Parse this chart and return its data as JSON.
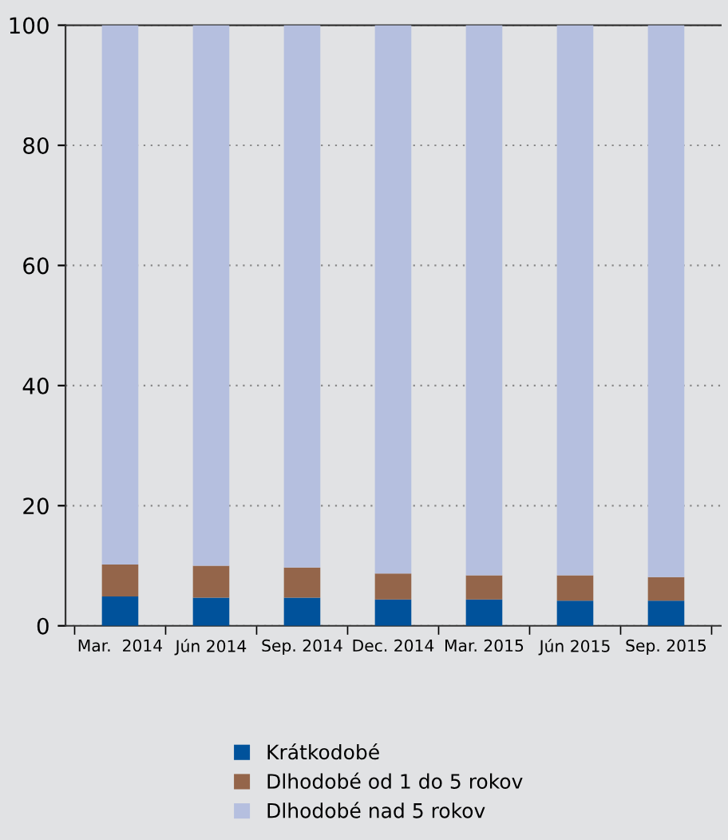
{
  "chart_data": {
    "type": "bar",
    "stacked": true,
    "categories": [
      "Mar.  2014",
      "Jún 2014",
      "Sep. 2014",
      "Dec. 2014",
      "Mar. 2015",
      "Jún 2015",
      "Sep. 2015"
    ],
    "series": [
      {
        "name": "Krátkodobé",
        "color": "#00529b",
        "values": [
          4.9,
          4.7,
          4.7,
          4.4,
          4.4,
          4.2,
          4.2
        ]
      },
      {
        "name": "Dlhodobé od 1 do 5 rokov",
        "color": "#94654a",
        "values": [
          5.3,
          5.3,
          5.0,
          4.3,
          4.0,
          4.2,
          3.9
        ]
      },
      {
        "name": "Dlhodobé nad 5 rokov",
        "color": "#b5bfdf",
        "values": [
          89.8,
          90.0,
          90.3,
          91.3,
          91.6,
          91.6,
          91.9
        ]
      }
    ],
    "ylim": [
      0,
      100
    ],
    "yticks": [
      0,
      20,
      40,
      60,
      80,
      100
    ],
    "grid": "y",
    "legend": "bottom"
  }
}
